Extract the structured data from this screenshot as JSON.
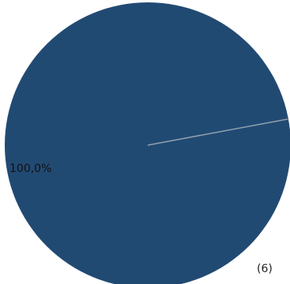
{
  "chart_data": {
    "type": "pie",
    "slices": [
      {
        "label": "100,0%",
        "value": 100.0,
        "color": "#214a73"
      }
    ],
    "count_label": "(6)",
    "separator_color": "#8ea0b0"
  }
}
